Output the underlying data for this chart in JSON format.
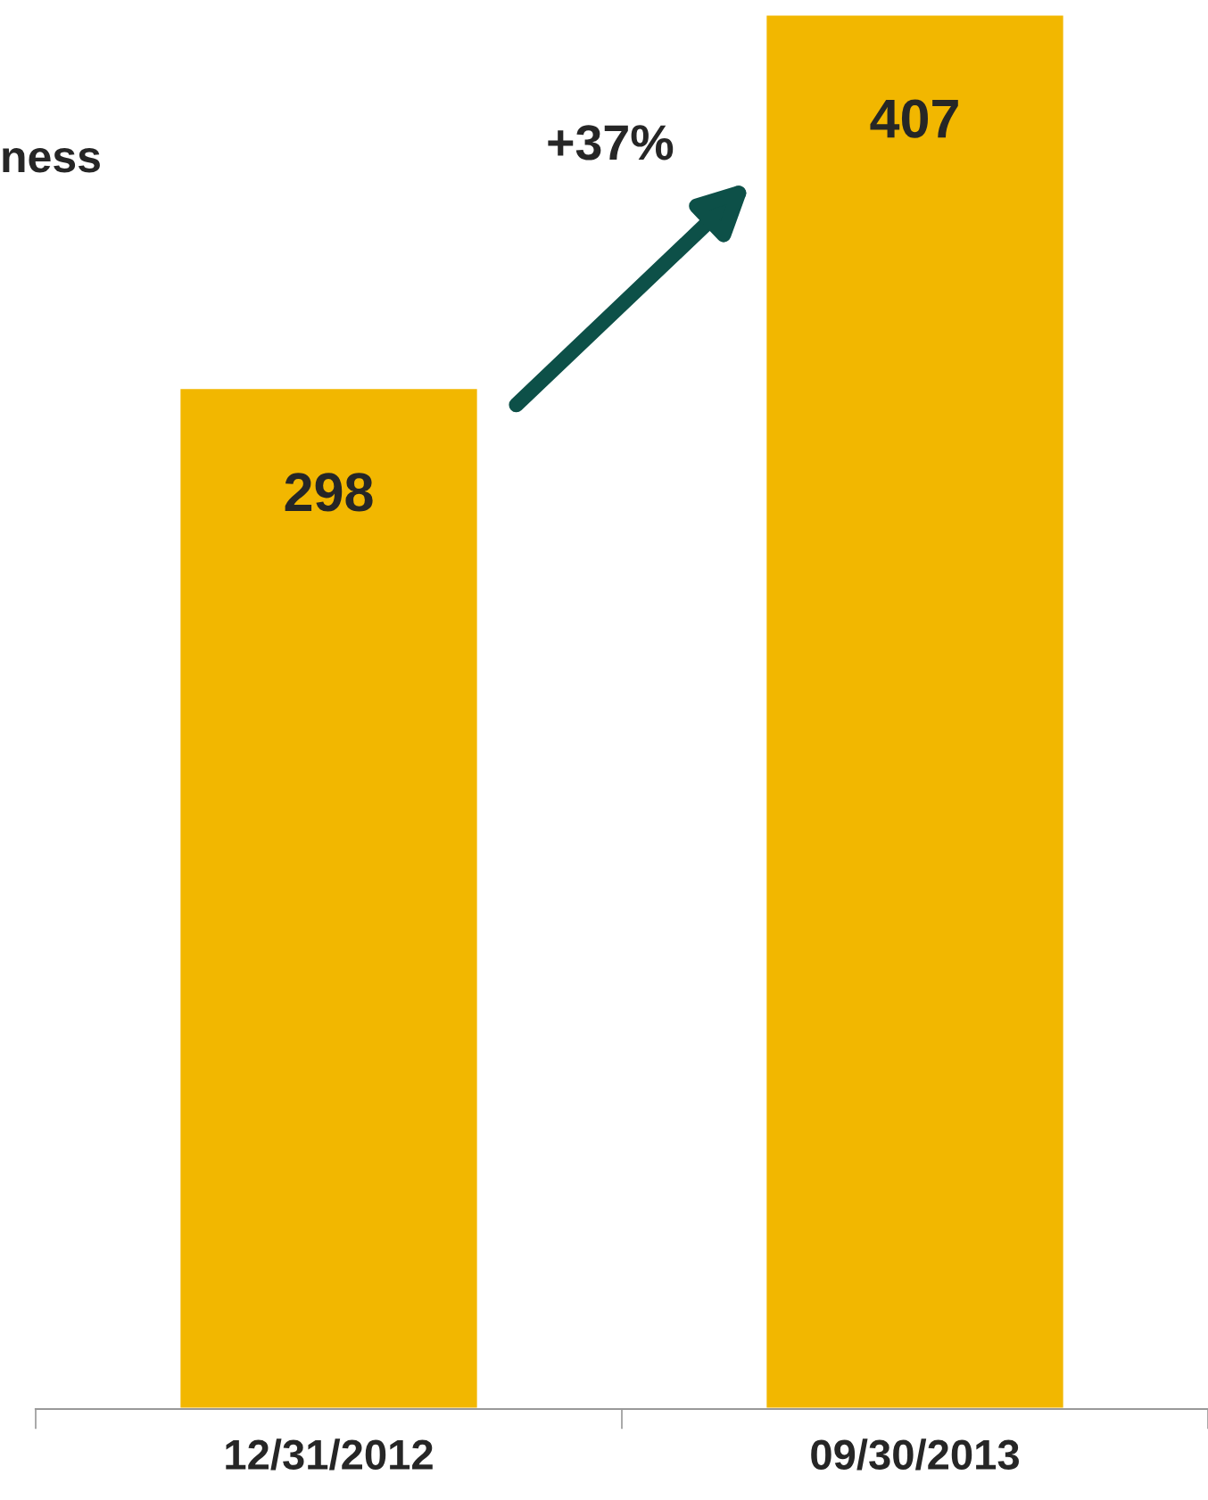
{
  "chart_data": {
    "type": "bar",
    "title": "ness",
    "categories": [
      "12/31/2012",
      "09/30/2013"
    ],
    "values": [
      298,
      407
    ],
    "color": "#f2b700",
    "data_labels": true,
    "annotations": [
      "+37%"
    ]
  }
}
